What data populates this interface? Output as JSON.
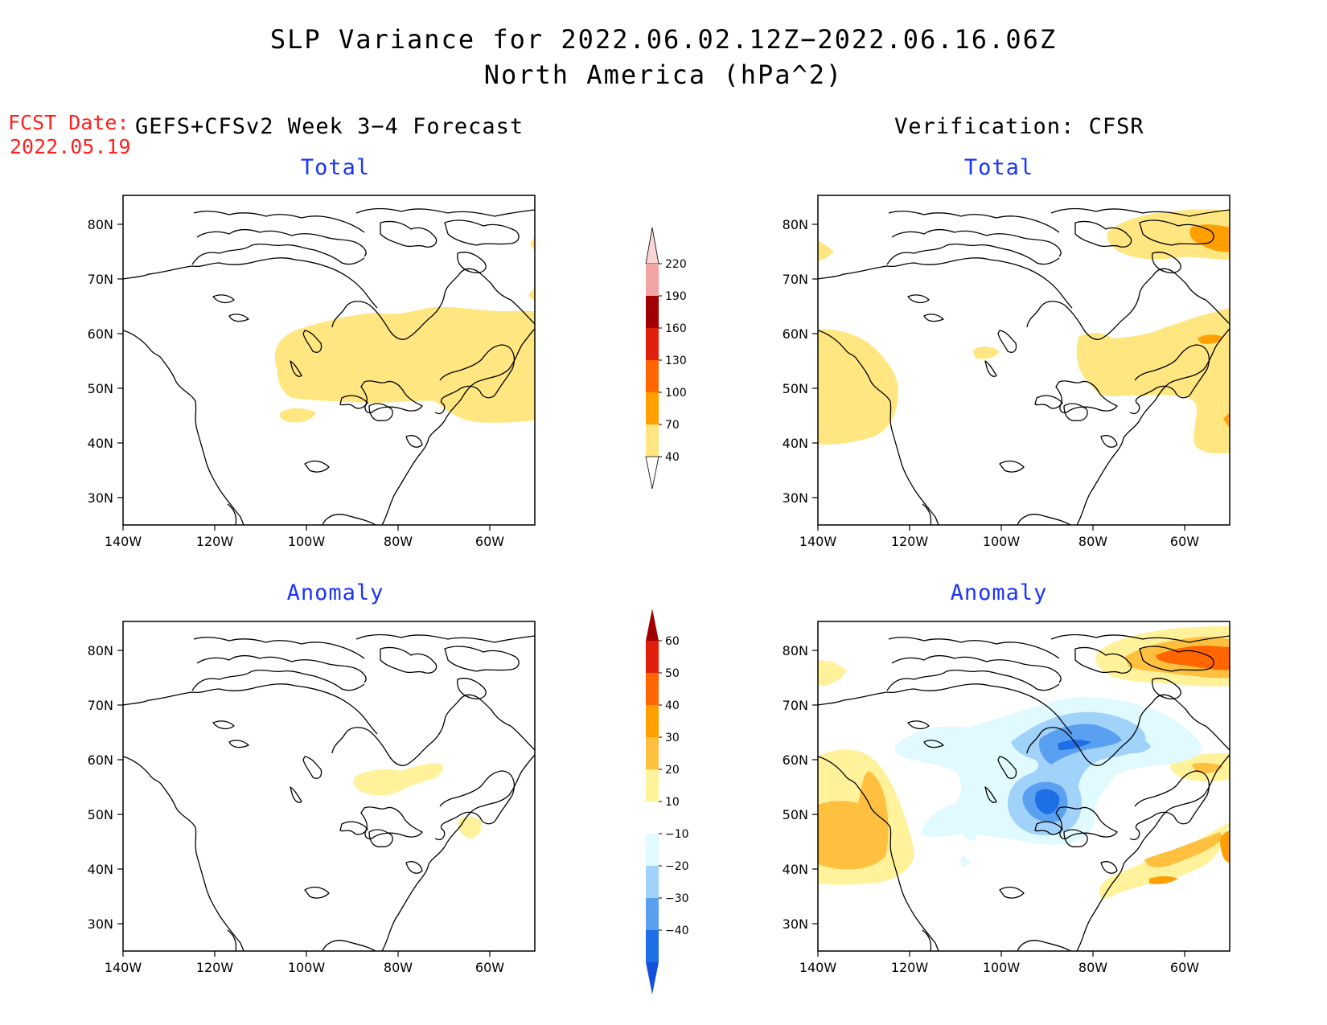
{
  "title": {
    "line1": "SLP Variance for 2022.06.02.12Z−2022.06.16.06Z",
    "line2": "North America (hPa^2)"
  },
  "fcst": {
    "label": "FCST Date:",
    "date": "2022.05.19"
  },
  "columns": {
    "left": "GEFS+CFSv2 Week 3−4 Forecast",
    "right": "Verification: CFSR"
  },
  "panels": {
    "top_left_title": "Total",
    "top_right_title": "Total",
    "bottom_left_title": "Anomaly",
    "bottom_right_title": "Anomaly"
  },
  "axes": {
    "lat_labels": [
      "80N",
      "70N",
      "60N",
      "50N",
      "40N",
      "30N"
    ],
    "lon_labels": [
      "140W",
      "120W",
      "100W",
      "80W",
      "60W"
    ]
  },
  "colorbars": {
    "total": {
      "labels": [
        "220",
        "190",
        "160",
        "130",
        "100",
        "70",
        "40"
      ],
      "colors": [
        "#f9d5d3",
        "#f2a3a3",
        "#a00000",
        "#e0200c",
        "#ff6600",
        "#ffa000",
        "#ffe680"
      ]
    },
    "anomaly": {
      "labels": [
        "60",
        "50",
        "40",
        "30",
        "20",
        "10",
        "−10",
        "−20",
        "−30",
        "−40"
      ],
      "colors": [
        "#a00000",
        "#e0200c",
        "#ff6600",
        "#ffa000",
        "#ffc040",
        "#fff29a",
        "#ffffff",
        "#e0faff",
        "#a0d2fa",
        "#5aa0f0",
        "#1e6ee6",
        "#1450dc"
      ]
    }
  },
  "palette": {
    "light_yellow": "#ffe680",
    "pale_yellow": "#fff29a",
    "light_orange": "#ffc040",
    "orange": "#ffa000",
    "dark_orange": "#ff6600",
    "pale_blue": "#e0faff",
    "light_blue": "#a0d2fa",
    "mid_blue": "#5aa0f0",
    "dark_blue": "#1e6ee6",
    "title_blue": "#1a33ff",
    "fcst_red": "#ff2020"
  }
}
